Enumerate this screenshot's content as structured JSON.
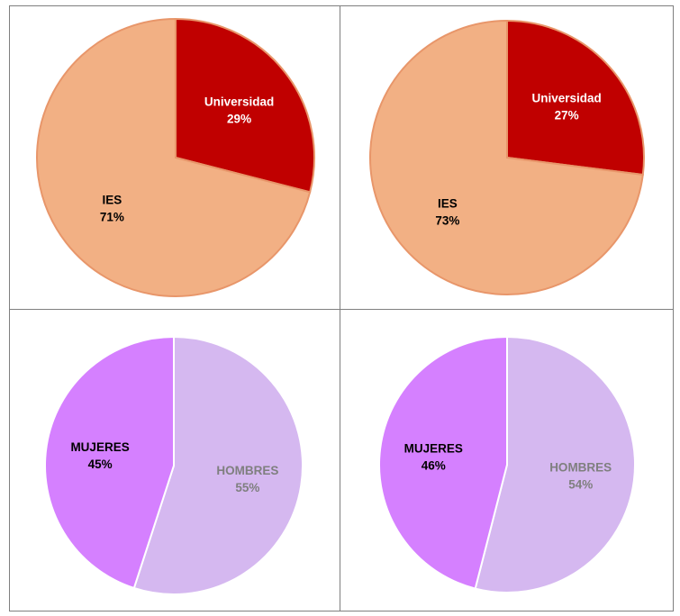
{
  "chart_data": [
    {
      "type": "pie",
      "slices": [
        {
          "label": "Universidad",
          "value": 29,
          "value_label": "29%",
          "color": "#c00000",
          "label_color": "#ffffff"
        },
        {
          "label": "IES",
          "value": 71,
          "value_label": "71%",
          "color": "#f2b084",
          "label_color": "#000000"
        }
      ]
    },
    {
      "type": "pie",
      "slices": [
        {
          "label": "Universidad",
          "value": 27,
          "value_label": "27%",
          "color": "#c00000",
          "label_color": "#ffffff"
        },
        {
          "label": "IES",
          "value": 73,
          "value_label": "73%",
          "color": "#f2b084",
          "label_color": "#000000"
        }
      ]
    },
    {
      "type": "pie",
      "slices": [
        {
          "label": "HOMBRES",
          "value": 55,
          "value_label": "55%",
          "color": "#d5b8f0",
          "label_color": "#7f7f7f"
        },
        {
          "label": "MUJERES",
          "value": 45,
          "value_label": "45%",
          "color": "#d580ff",
          "label_color": "#000000"
        }
      ]
    },
    {
      "type": "pie",
      "slices": [
        {
          "label": "HOMBRES",
          "value": 54,
          "value_label": "54%",
          "color": "#d5b8f0",
          "label_color": "#7f7f7f"
        },
        {
          "label": "MUJERES",
          "value": 46,
          "value_label": "46%",
          "color": "#d580ff",
          "label_color": "#000000"
        }
      ]
    }
  ]
}
